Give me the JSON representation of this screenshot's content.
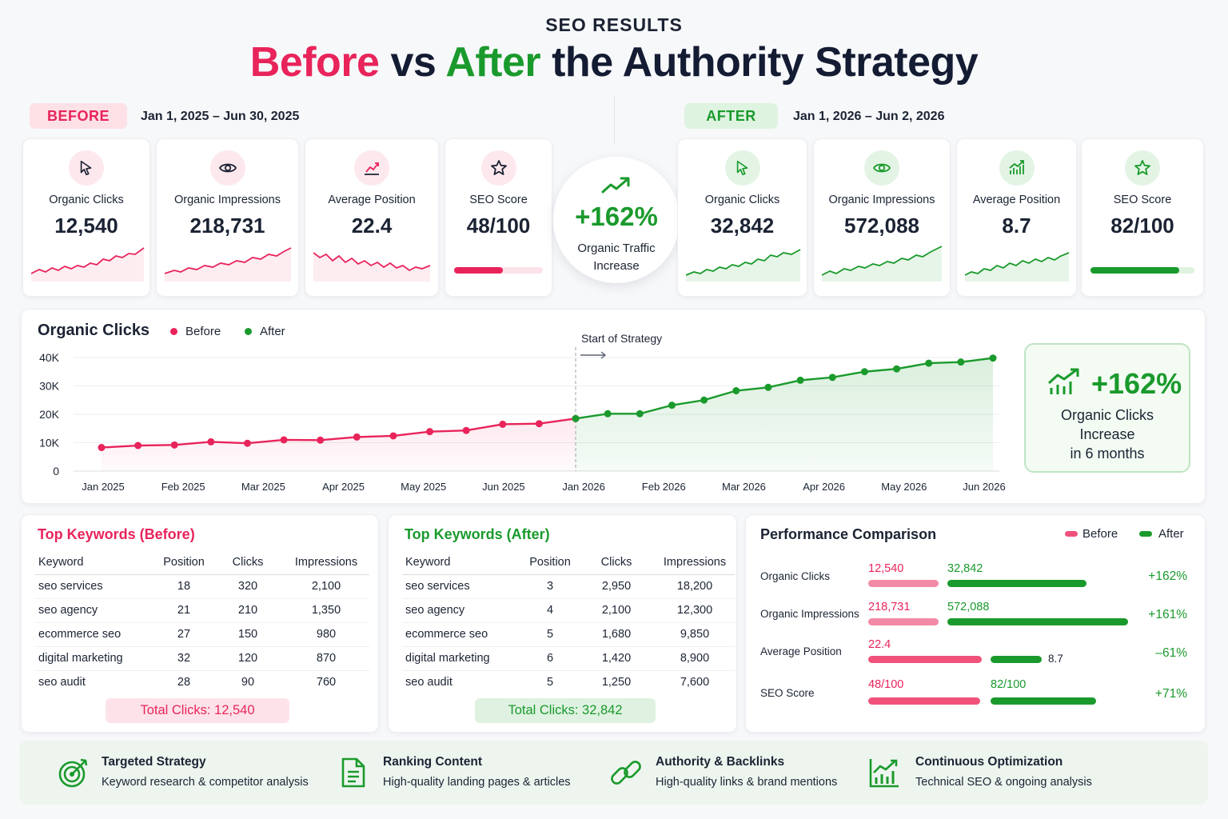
{
  "header": {
    "kicker": "SEO RESULTS",
    "title_before": "Before",
    "title_vs": "vs",
    "title_after": "After",
    "title_rest": "the Authority Strategy"
  },
  "before": {
    "badge": "BEFORE",
    "range": "Jan 1, 2025 – Jun 30, 2025",
    "kpis": [
      {
        "label": "Organic Clicks",
        "value": "12,540",
        "icon": "cursor-icon"
      },
      {
        "label": "Organic Impressions",
        "value": "218,731",
        "icon": "eye-icon"
      },
      {
        "label": "Average Position",
        "value": "22.4",
        "icon": "trend-chart-icon"
      },
      {
        "label": "SEO Score",
        "value": "48/100",
        "icon": "star-icon",
        "score_fraction": 0.48
      }
    ]
  },
  "after": {
    "badge": "AFTER",
    "range": "Jan 1, 2026 – Jun 2, 2026",
    "kpis": [
      {
        "label": "Organic Clicks",
        "value": "32,842",
        "icon": "cursor-icon"
      },
      {
        "label": "Organic Impressions",
        "value": "572,088",
        "icon": "eye-icon"
      },
      {
        "label": "Average Position",
        "value": "8.7",
        "icon": "bar-growth-icon"
      },
      {
        "label": "SEO Score",
        "value": "82/100",
        "icon": "star-icon",
        "score_fraction": 0.82
      }
    ]
  },
  "center": {
    "value": "+162%",
    "line1": "Organic Traffic",
    "line2": "Increase"
  },
  "callout": {
    "value": "+162%",
    "line1": "Organic Clicks",
    "line2": "Increase",
    "line3": "in 6 months"
  },
  "chart_data": {
    "type": "line",
    "title": "Organic Clicks",
    "annotation": "Start of Strategy",
    "legend": [
      "Before",
      "After"
    ],
    "ylim": [
      0,
      40000
    ],
    "y_ticks": [
      "0",
      "10K",
      "20K",
      "30K",
      "40K"
    ],
    "x_tick_labels": [
      "Jan 2025",
      "Feb 2025",
      "Mar 2025",
      "Apr 2025",
      "May 2025",
      "Jun 2025",
      "Jan 2026",
      "Feb 2026",
      "Mar 2026",
      "Apr 2026",
      "May 2026",
      "Jun 2026"
    ],
    "series": [
      {
        "name": "Before",
        "color": "#e8245b",
        "values": [
          8300,
          9000,
          9200,
          10300,
          9800,
          11000,
          10900,
          12000,
          12400,
          13900,
          14300,
          16500,
          16700,
          18500
        ]
      },
      {
        "name": "After",
        "color": "#1a9a2c",
        "values": [
          18500,
          20200,
          20200,
          23200,
          25000,
          28300,
          29500,
          32000,
          33000,
          35000,
          36000,
          38000,
          38400,
          39800
        ]
      }
    ],
    "grid": true
  },
  "kw_before": {
    "title": "Top Keywords (Before)",
    "headers": [
      "Keyword",
      "Position",
      "Clicks",
      "Impressions"
    ],
    "rows": [
      [
        "seo services",
        "18",
        "320",
        "2,100"
      ],
      [
        "seo agency",
        "21",
        "210",
        "1,350"
      ],
      [
        "ecommerce seo",
        "27",
        "150",
        "980"
      ],
      [
        "digital marketing",
        "32",
        "120",
        "870"
      ],
      [
        "seo audit",
        "28",
        "90",
        "760"
      ]
    ],
    "total": "Total Clicks: 12,540"
  },
  "kw_after": {
    "title": "Top Keywords (After)",
    "headers": [
      "Keyword",
      "Position",
      "Clicks",
      "Impressions"
    ],
    "rows": [
      [
        "seo services",
        "3",
        "2,950",
        "18,200"
      ],
      [
        "seo agency",
        "4",
        "2,100",
        "12,300"
      ],
      [
        "ecommerce seo",
        "5",
        "1,680",
        "9,850"
      ],
      [
        "digital marketing",
        "6",
        "1,420",
        "8,900"
      ],
      [
        "seo audit",
        "5",
        "1,250",
        "7,600"
      ]
    ],
    "total": "Total Clicks: 32,842"
  },
  "perf": {
    "title": "Performance Comparison",
    "legend_before": "Before",
    "legend_after": "After",
    "rows": [
      {
        "label": "Organic Clicks",
        "before": "12,540",
        "after": "32,842",
        "change": "+162%"
      },
      {
        "label": "Organic Impressions",
        "before": "218,731",
        "after": "572,088",
        "change": "+161%"
      },
      {
        "label": "Average Position",
        "before": "22.4",
        "after": "8.7",
        "change": "–61%"
      },
      {
        "label": "SEO Score",
        "before": "48/100",
        "after": "82/100",
        "change": "+71%"
      }
    ]
  },
  "footer": [
    {
      "title": "Targeted Strategy",
      "desc": "Keyword research & competitor analysis",
      "icon": "target-icon"
    },
    {
      "title": "Ranking Content",
      "desc": "High-quality landing pages & articles",
      "icon": "document-icon"
    },
    {
      "title": "Authority & Backlinks",
      "desc": "High-quality links & brand mentions",
      "icon": "link-icon"
    },
    {
      "title": "Continuous Optimization",
      "desc": "Technical SEO & ongoing analysis",
      "icon": "growth-chart-icon"
    }
  ],
  "colors": {
    "before": "#e8245b",
    "after": "#1a9a2c"
  }
}
